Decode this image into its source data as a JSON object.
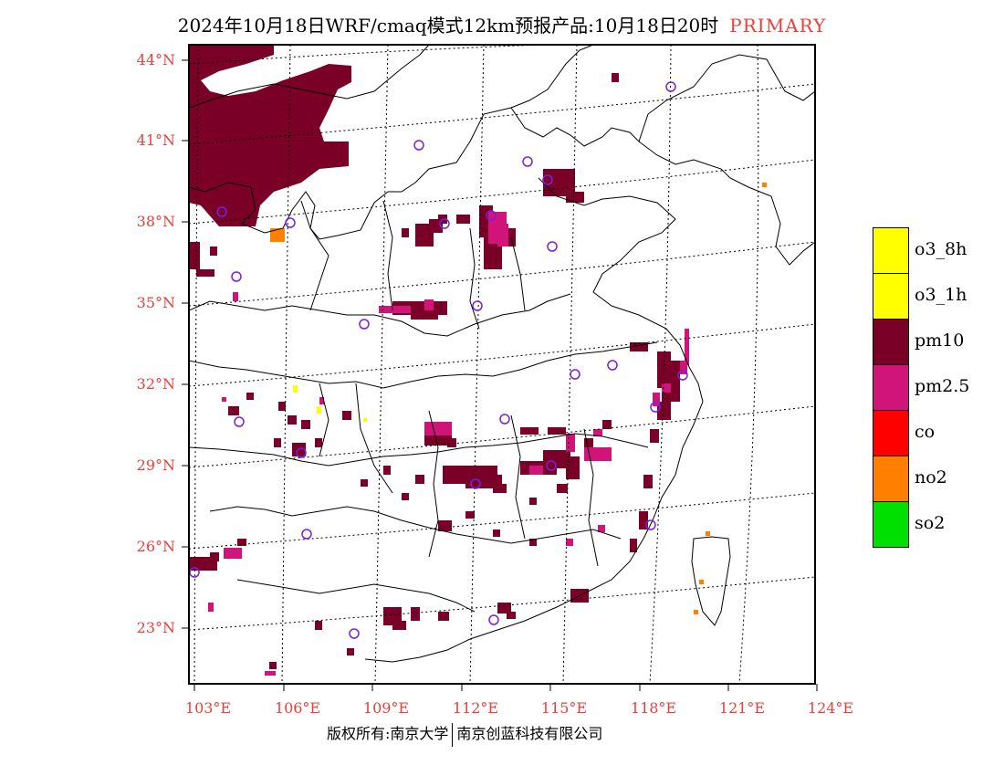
{
  "header": {
    "title": "2024年10月18日WRF/cmaq模式12km预报产品:10月18日20时",
    "tag": "PRIMARY"
  },
  "map": {
    "lat_labels": [
      "44°N",
      "41°N",
      "38°N",
      "35°N",
      "32°N",
      "29°N",
      "26°N",
      "23°N"
    ],
    "lon_labels": [
      "103°E",
      "106°E",
      "109°E",
      "112°E",
      "115°E",
      "118°E",
      "121°E",
      "124°E"
    ],
    "colors": {
      "pm10": "#7a0028",
      "pm25": "#d0147a",
      "no2": "#ff7f00",
      "o3": "#ffff00",
      "station": "#7a1ee6",
      "label": "#e8413b"
    }
  },
  "legend": [
    {
      "label": "o3_8h",
      "color": "#ffff00"
    },
    {
      "label": "o3_1h",
      "color": "#ffff00"
    },
    {
      "label": "pm10",
      "color": "#7a0028"
    },
    {
      "label": "pm2.5",
      "color": "#d0147a"
    },
    {
      "label": "co",
      "color": "#ff0000"
    },
    {
      "label": "no2",
      "color": "#ff7f00"
    },
    {
      "label": "so2",
      "color": "#00e000"
    }
  ],
  "footer": {
    "left": "版权所有:南京大学",
    "right": "南京创蓝科技有限公司"
  }
}
